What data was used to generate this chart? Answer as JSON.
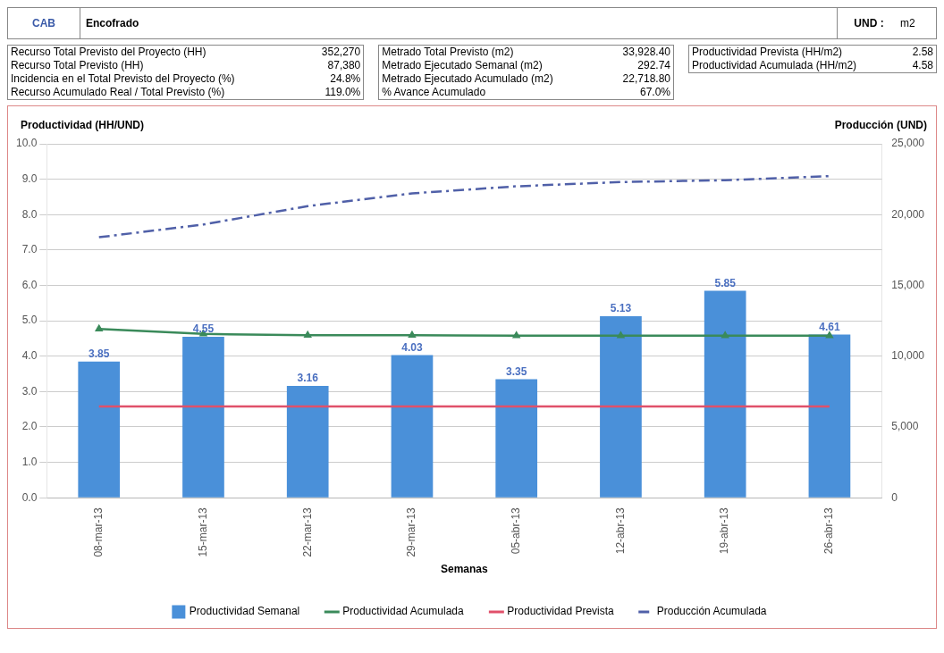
{
  "chart_data": {
    "type": "bar",
    "xlabel": "Semanas",
    "ylabel": "Productividad (HH/UND)",
    "y2label": "Producción (UND)",
    "categories": [
      "08-mar-13",
      "15-mar-13",
      "22-mar-13",
      "29-mar-13",
      "05-abr-13",
      "12-abr-13",
      "19-abr-13",
      "26-abr-13"
    ],
    "series": [
      {
        "name": "Productividad Semanal",
        "color": "#4a90d9",
        "values": [
          3.85,
          4.55,
          3.16,
          4.03,
          3.35,
          5.13,
          5.85,
          4.61
        ],
        "value_labels": [
          "3.85",
          "4.55",
          "3.16",
          "4.03",
          "3.35",
          "5.13",
          "5.85",
          "4.61"
        ]
      },
      {
        "name": "Productividad Acumulada",
        "type": "line",
        "color": "#3a8a5a",
        "marker": "triangle",
        "line_style": "solid",
        "values": [
          4.77,
          4.63,
          4.59,
          4.59,
          4.58,
          4.58,
          4.58,
          4.58
        ]
      },
      {
        "name": "Productividad Prevista",
        "type": "line",
        "color": "#e0506a",
        "marker": "none",
        "line_style": "solid",
        "values": [
          2.58,
          2.58,
          2.58,
          2.58,
          2.58,
          2.58,
          2.58,
          2.58
        ]
      },
      {
        "name": "Producción Acumulada",
        "type": "line",
        "color": "#5060a8",
        "marker": "none",
        "line_style": "dashed",
        "axis": "y2",
        "values": [
          18400,
          19300,
          20600,
          21500,
          22000,
          22300,
          22430,
          22720
        ]
      }
    ],
    "ylim": [
      0,
      10
    ],
    "yticks": [
      {
        "value": 0,
        "label": "0.0"
      },
      {
        "value": 1,
        "label": "1.0"
      },
      {
        "value": 2,
        "label": "2.0"
      },
      {
        "value": 3,
        "label": "3.0"
      },
      {
        "value": 4,
        "label": "4.0"
      },
      {
        "value": 5,
        "label": "5.0"
      },
      {
        "value": 6,
        "label": "6.0"
      },
      {
        "value": 7,
        "label": "7.0"
      },
      {
        "value": 8,
        "label": "8.0"
      },
      {
        "value": 9,
        "label": "9.0"
      },
      {
        "value": 10,
        "label": "10.0"
      }
    ],
    "y2lim": [
      0,
      25000
    ],
    "y2ticks": [
      0,
      {
        "value": 5000,
        "label": "5,000"
      },
      {
        "value": 10000,
        "label": "10,000"
      },
      {
        "value": 15000,
        "label": "15,000"
      },
      {
        "value": 20000,
        "label": "20,000"
      },
      {
        "value": 25000,
        "label": "25,000"
      }
    ],
    "grid": "y",
    "legend": "bottom",
    "annotations": [
      "CAB",
      "Encofrado",
      "UND :",
      "m2",
      "Recurso Total Previsto del Proyecto (HH)",
      "352,270",
      "Recurso Total Previsto (HH)",
      "87,380",
      "Incidencia en el Total Previsto del Proyecto  (%)",
      "24.8%",
      "Recurso Acumulado Real / Total Previsto (%)",
      "119.0%",
      "Metrado Total Previsto (m2)",
      "33,928.40",
      "Metrado Ejecutado Semanal (m2)",
      "292.74",
      "Metrado Ejecutado Acumulado (m2)",
      "22,718.80",
      "% Avance Acumulado",
      "67.0%",
      "Productividad Prevista (HH/m2)",
      "2.58",
      "Productividad Acumulada (HH/m2)",
      "4.58"
    ]
  }
}
